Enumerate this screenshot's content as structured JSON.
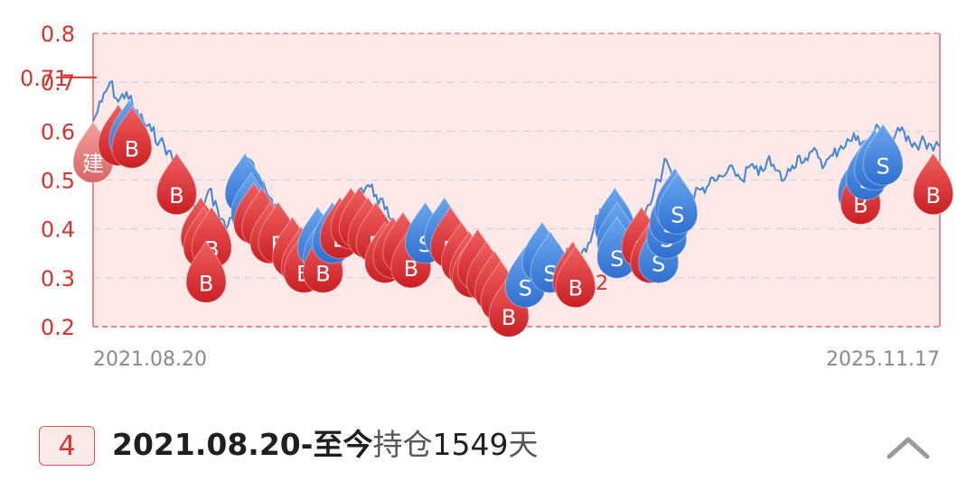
{
  "chart_data": {
    "type": "line",
    "title": "",
    "xlabel": "",
    "ylabel": "",
    "x_start_label": "2021.08.20",
    "x_end_label": "2025.11.17",
    "ylim": [
      0.2,
      0.8
    ],
    "yticks": [
      "0.8",
      "0.7",
      "0.6",
      "0.5",
      "0.4",
      "0.3",
      "0.2"
    ],
    "grid": true,
    "reference_lines": [
      {
        "label": "0.71",
        "value": 0.71,
        "color": "#d6332f"
      },
      {
        "label": "0.292",
        "value": 0.292,
        "color": "#d6332f"
      }
    ],
    "series": [
      {
        "color": "#3f86d6",
        "points": [
          [
            "2021-08-20",
            0.62
          ],
          [
            "2021-09-05",
            0.66
          ],
          [
            "2021-09-20",
            0.7
          ],
          [
            "2021-10-05",
            0.66
          ],
          [
            "2021-10-20",
            0.68
          ],
          [
            "2021-11-05",
            0.64
          ],
          [
            "2021-11-20",
            0.62
          ],
          [
            "2021-12-05",
            0.6
          ],
          [
            "2021-12-20",
            0.58
          ],
          [
            "2022-01-05",
            0.56
          ],
          [
            "2022-01-20",
            0.52
          ],
          [
            "2022-02-05",
            0.5
          ],
          [
            "2022-02-20",
            0.45
          ],
          [
            "2022-03-05",
            0.42
          ],
          [
            "2022-03-20",
            0.48
          ],
          [
            "2022-04-05",
            0.44
          ],
          [
            "2022-04-20",
            0.4
          ],
          [
            "2022-05-05",
            0.44
          ],
          [
            "2022-05-20",
            0.5
          ],
          [
            "2022-06-05",
            0.54
          ],
          [
            "2022-06-20",
            0.51
          ],
          [
            "2022-07-05",
            0.47
          ],
          [
            "2022-07-20",
            0.45
          ],
          [
            "2022-08-05",
            0.42
          ],
          [
            "2022-08-20",
            0.4
          ],
          [
            "2022-09-05",
            0.38
          ],
          [
            "2022-09-20",
            0.35
          ],
          [
            "2022-10-05",
            0.33
          ],
          [
            "2022-10-20",
            0.34
          ],
          [
            "2022-11-05",
            0.38
          ],
          [
            "2022-11-20",
            0.41
          ],
          [
            "2022-12-05",
            0.44
          ],
          [
            "2022-12-20",
            0.48
          ],
          [
            "2023-01-05",
            0.49
          ],
          [
            "2023-01-20",
            0.47
          ],
          [
            "2023-02-05",
            0.44
          ],
          [
            "2023-02-20",
            0.42
          ],
          [
            "2023-03-05",
            0.41
          ],
          [
            "2023-03-20",
            0.39
          ],
          [
            "2023-04-05",
            0.4
          ],
          [
            "2023-04-20",
            0.38
          ],
          [
            "2023-05-05",
            0.41
          ],
          [
            "2023-05-20",
            0.43
          ],
          [
            "2023-06-05",
            0.42
          ],
          [
            "2023-06-20",
            0.4
          ],
          [
            "2023-07-05",
            0.38
          ],
          [
            "2023-07-20",
            0.36
          ],
          [
            "2023-08-05",
            0.35
          ],
          [
            "2023-08-20",
            0.34
          ],
          [
            "2023-09-05",
            0.32
          ],
          [
            "2023-09-20",
            0.3
          ],
          [
            "2023-10-05",
            0.31
          ],
          [
            "2023-10-20",
            0.33
          ],
          [
            "2023-11-05",
            0.35
          ],
          [
            "2023-11-20",
            0.38
          ],
          [
            "2023-12-05",
            0.37
          ],
          [
            "2023-12-20",
            0.35
          ],
          [
            "2024-01-05",
            0.36
          ],
          [
            "2024-01-20",
            0.34
          ],
          [
            "2024-02-05",
            0.36
          ],
          [
            "2024-02-20",
            0.39
          ],
          [
            "2024-03-05",
            0.44
          ],
          [
            "2024-03-20",
            0.41
          ],
          [
            "2024-04-05",
            0.4
          ],
          [
            "2024-04-20",
            0.42
          ],
          [
            "2024-05-05",
            0.39
          ],
          [
            "2024-05-20",
            0.41
          ],
          [
            "2024-06-05",
            0.45
          ],
          [
            "2024-06-20",
            0.5
          ],
          [
            "2024-07-05",
            0.54
          ],
          [
            "2024-07-20",
            0.48
          ],
          [
            "2024-08-05",
            0.45
          ],
          [
            "2024-08-20",
            0.47
          ],
          [
            "2024-09-05",
            0.48
          ],
          [
            "2024-09-20",
            0.49
          ],
          [
            "2024-10-05",
            0.5
          ],
          [
            "2024-10-20",
            0.51
          ],
          [
            "2024-11-05",
            0.52
          ],
          [
            "2024-11-20",
            0.5
          ],
          [
            "2024-12-05",
            0.53
          ],
          [
            "2024-12-20",
            0.51
          ],
          [
            "2025-01-05",
            0.54
          ],
          [
            "2025-01-20",
            0.52
          ],
          [
            "2025-02-05",
            0.5
          ],
          [
            "2025-02-20",
            0.53
          ],
          [
            "2025-03-05",
            0.55
          ],
          [
            "2025-03-20",
            0.54
          ],
          [
            "2025-04-05",
            0.56
          ],
          [
            "2025-04-20",
            0.53
          ],
          [
            "2025-05-05",
            0.55
          ],
          [
            "2025-05-20",
            0.57
          ],
          [
            "2025-06-05",
            0.58
          ],
          [
            "2025-06-20",
            0.59
          ],
          [
            "2025-07-05",
            0.57
          ],
          [
            "2025-07-20",
            0.6
          ],
          [
            "2025-08-05",
            0.61
          ],
          [
            "2025-08-20",
            0.58
          ],
          [
            "2025-09-05",
            0.6
          ],
          [
            "2025-09-20",
            0.59
          ],
          [
            "2025-10-05",
            0.57
          ],
          [
            "2025-10-20",
            0.58
          ],
          [
            "2025-11-05",
            0.56
          ],
          [
            "2025-11-17",
            0.57
          ]
        ]
      }
    ],
    "markers": [
      {
        "type": "建",
        "x": "2021-08-20",
        "y": 0.535
      },
      {
        "type": "B",
        "x": "2021-10-05",
        "y": 0.57
      },
      {
        "type": "S",
        "x": "2021-10-25",
        "y": 0.58
      },
      {
        "type": "B",
        "x": "2021-10-30",
        "y": 0.565
      },
      {
        "type": "B",
        "x": "2022-01-20",
        "y": 0.47
      },
      {
        "type": "B",
        "x": "2022-03-05",
        "y": 0.38
      },
      {
        "type": "B",
        "x": "2022-03-10",
        "y": 0.36
      },
      {
        "type": "B",
        "x": "2022-03-25",
        "y": 0.36
      },
      {
        "type": "B",
        "x": "2022-03-15",
        "y": 0.29
      },
      {
        "type": "S",
        "x": "2022-05-25",
        "y": 0.47
      },
      {
        "type": "S",
        "x": "2022-06-05",
        "y": 0.43
      },
      {
        "type": "B",
        "x": "2022-06-10",
        "y": 0.41
      },
      {
        "type": "B",
        "x": "2022-06-25",
        "y": 0.4
      },
      {
        "type": "B",
        "x": "2022-07-10",
        "y": 0.37
      },
      {
        "type": "B",
        "x": "2022-07-25",
        "y": 0.37
      },
      {
        "type": "B",
        "x": "2022-08-20",
        "y": 0.34
      },
      {
        "type": "B",
        "x": "2022-09-05",
        "y": 0.32
      },
      {
        "type": "B",
        "x": "2022-09-10",
        "y": 0.31
      },
      {
        "type": "S",
        "x": "2022-10-05",
        "y": 0.36
      },
      {
        "type": "S",
        "x": "2022-10-15",
        "y": 0.34
      },
      {
        "type": "B",
        "x": "2022-10-15",
        "y": 0.31
      },
      {
        "type": "S",
        "x": "2022-11-01",
        "y": 0.37
      },
      {
        "type": "B",
        "x": "2022-11-15",
        "y": 0.38
      },
      {
        "type": "B",
        "x": "2022-12-05",
        "y": 0.4
      },
      {
        "type": "B",
        "x": "2022-12-20",
        "y": 0.4
      },
      {
        "type": "B",
        "x": "2023-01-05",
        "y": 0.38
      },
      {
        "type": "B",
        "x": "2023-01-20",
        "y": 0.37
      },
      {
        "type": "B",
        "x": "2023-02-05",
        "y": 0.33
      },
      {
        "type": "B",
        "x": "2023-02-20",
        "y": 0.34
      },
      {
        "type": "B",
        "x": "2023-03-10",
        "y": 0.35
      },
      {
        "type": "B",
        "x": "2023-03-25",
        "y": 0.32
      },
      {
        "type": "S",
        "x": "2023-04-20",
        "y": 0.37
      },
      {
        "type": "S",
        "x": "2023-05-25",
        "y": 0.38
      },
      {
        "type": "B",
        "x": "2023-06-05",
        "y": 0.36
      },
      {
        "type": "B",
        "x": "2023-06-25",
        "y": 0.33
      },
      {
        "type": "B",
        "x": "2023-07-10",
        "y": 0.31
      },
      {
        "type": "B",
        "x": "2023-07-15",
        "y": 0.3
      },
      {
        "type": "B",
        "x": "2023-07-25",
        "y": 0.315
      },
      {
        "type": "B",
        "x": "2023-08-10",
        "y": 0.29
      },
      {
        "type": "B",
        "x": "2023-08-25",
        "y": 0.27
      },
      {
        "type": "B",
        "x": "2023-09-05",
        "y": 0.25
      },
      {
        "type": "B",
        "x": "2023-09-20",
        "y": 0.22
      },
      {
        "type": "S",
        "x": "2023-10-20",
        "y": 0.28
      },
      {
        "type": "S",
        "x": "2023-11-20",
        "y": 0.33
      },
      {
        "type": "S",
        "x": "2023-12-05",
        "y": 0.31
      },
      {
        "type": "B",
        "x": "2024-01-15",
        "y": 0.29
      },
      {
        "type": "B",
        "x": "2024-01-20",
        "y": 0.28
      },
      {
        "type": "S",
        "x": "2024-04-01",
        "y": 0.4
      },
      {
        "type": "S",
        "x": "2024-04-05",
        "y": 0.37
      },
      {
        "type": "S",
        "x": "2024-04-05",
        "y": 0.34
      },
      {
        "type": "B",
        "x": "2024-05-20",
        "y": 0.36
      },
      {
        "type": "B",
        "x": "2024-06-05",
        "y": 0.33
      },
      {
        "type": "S",
        "x": "2024-06-20",
        "y": 0.33
      },
      {
        "type": "S",
        "x": "2024-07-05",
        "y": 0.38
      },
      {
        "type": "S",
        "x": "2024-07-10",
        "y": 0.41
      },
      {
        "type": "S",
        "x": "2024-07-20",
        "y": 0.44
      },
      {
        "type": "S",
        "x": "2024-07-25",
        "y": 0.43
      },
      {
        "type": "S",
        "x": "2025-06-20",
        "y": 0.47
      },
      {
        "type": "B",
        "x": "2025-06-25",
        "y": 0.45
      },
      {
        "type": "S",
        "x": "2025-07-05",
        "y": 0.5
      },
      {
        "type": "S",
        "x": "2025-07-20",
        "y": 0.52
      },
      {
        "type": "S",
        "x": "2025-08-05",
        "y": 0.53
      },
      {
        "type": "B",
        "x": "2025-11-05",
        "y": 0.47
      }
    ],
    "colors": {
      "line": "#3f86d6",
      "buy": "#d9383a",
      "sell": "#3a7fdd",
      "build": "#e06b6b",
      "plot_bg": "#fde7e7",
      "axis": "#d6332f",
      "grid": "#c7cfe6"
    }
  },
  "footer": {
    "rank": "4",
    "range": "2021.08.20-至今",
    "label": "持仓",
    "days": "1549",
    "unit": "天",
    "collapse_icon": "chevron-up-icon"
  }
}
